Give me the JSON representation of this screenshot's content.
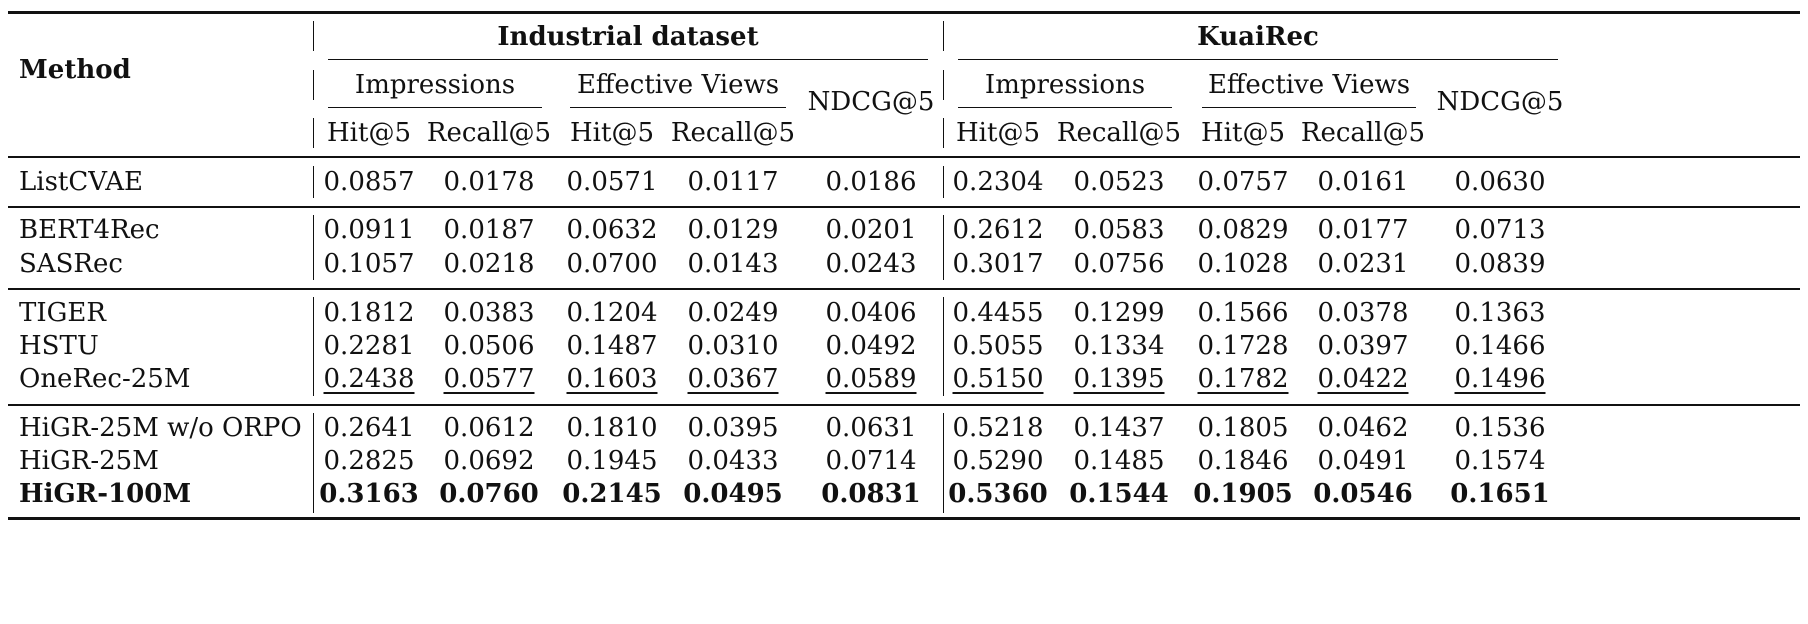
{
  "header": {
    "method_label": "Method",
    "groups": [
      "Industrial dataset",
      "KuaiRec"
    ],
    "subgroups": [
      "Impressions",
      "Effective Views",
      "NDCG@5"
    ],
    "metrics": [
      "Hit@5",
      "Recall@5",
      "Hit@5",
      "Recall@5"
    ]
  },
  "rows": [
    {
      "method": "ListCVAE",
      "values": [
        "0.0857",
        "0.0178",
        "0.0571",
        "0.0117",
        "0.0186",
        "0.2304",
        "0.0523",
        "0.0757",
        "0.0161",
        "0.0630"
      ],
      "style": "normal"
    },
    {
      "method": "BERT4Rec",
      "values": [
        "0.0911",
        "0.0187",
        "0.0632",
        "0.0129",
        "0.0201",
        "0.2612",
        "0.0583",
        "0.0829",
        "0.0177",
        "0.0713"
      ],
      "style": "normal"
    },
    {
      "method": "SASRec",
      "values": [
        "0.1057",
        "0.0218",
        "0.0700",
        "0.0143",
        "0.0243",
        "0.3017",
        "0.0756",
        "0.1028",
        "0.0231",
        "0.0839"
      ],
      "style": "normal"
    },
    {
      "method": "TIGER",
      "values": [
        "0.1812",
        "0.0383",
        "0.1204",
        "0.0249",
        "0.0406",
        "0.4455",
        "0.1299",
        "0.1566",
        "0.0378",
        "0.1363"
      ],
      "style": "normal"
    },
    {
      "method": "HSTU",
      "values": [
        "0.2281",
        "0.0506",
        "0.1487",
        "0.0310",
        "0.0492",
        "0.5055",
        "0.1334",
        "0.1728",
        "0.0397",
        "0.1466"
      ],
      "style": "normal"
    },
    {
      "method": "OneRec-25M",
      "values": [
        "0.2438",
        "0.0577",
        "0.1603",
        "0.0367",
        "0.0589",
        "0.5150",
        "0.1395",
        "0.1782",
        "0.0422",
        "0.1496"
      ],
      "style": "underline"
    },
    {
      "method": "HiGR-25M w/o ORPO",
      "values": [
        "0.2641",
        "0.0612",
        "0.1810",
        "0.0395",
        "0.0631",
        "0.5218",
        "0.1437",
        "0.1805",
        "0.0462",
        "0.1536"
      ],
      "style": "normal"
    },
    {
      "method": "HiGR-25M",
      "values": [
        "0.2825",
        "0.0692",
        "0.1945",
        "0.0433",
        "0.0714",
        "0.5290",
        "0.1485",
        "0.1846",
        "0.0491",
        "0.1574"
      ],
      "style": "normal"
    },
    {
      "method": "HiGR-100M",
      "values": [
        "0.3163",
        "0.0760",
        "0.2145",
        "0.0495",
        "0.0831",
        "0.5360",
        "0.1544",
        "0.1905",
        "0.0546",
        "0.1651"
      ],
      "style": "bold"
    }
  ]
}
